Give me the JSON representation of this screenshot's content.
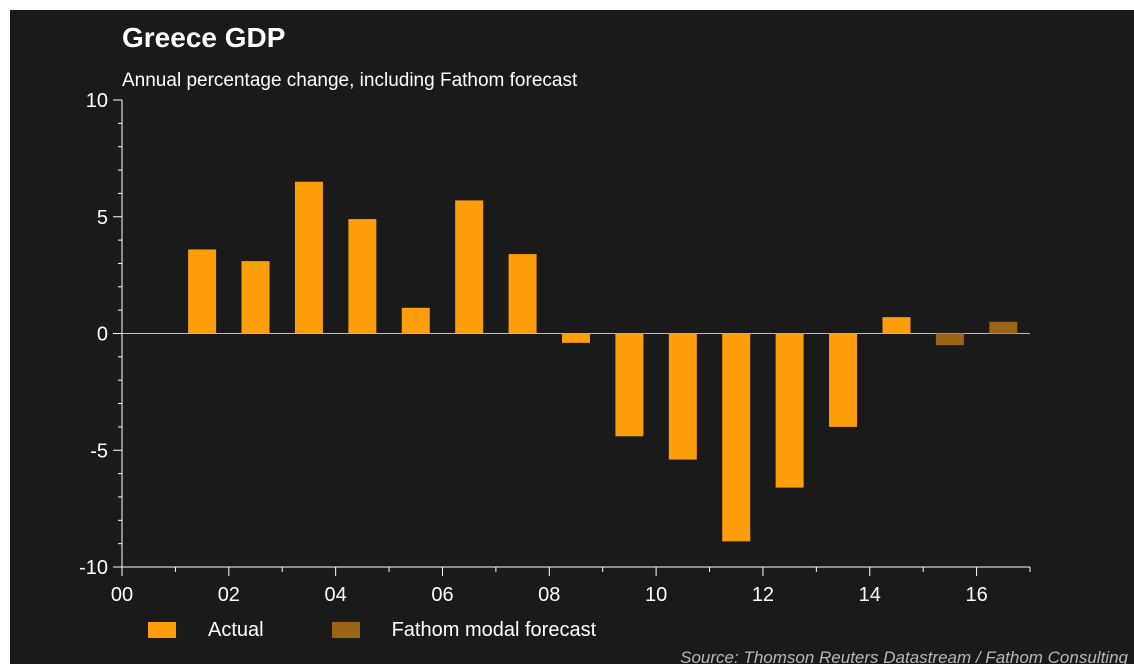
{
  "colors": {
    "background": "#1a1a1a",
    "actual": "#ff9d0a",
    "forecast": "#9b6418",
    "axis": "#ffffff",
    "text": "#ffffff"
  },
  "legend": {
    "actual_label": "Actual",
    "forecast_label": "Fathom modal forecast"
  },
  "source": "Source: Thomson Reuters Datastream / Fathom Consulting",
  "chart_data": {
    "type": "bar",
    "title": "Greece GDP",
    "subtitle": "Annual percentage change, including Fathom forecast",
    "xlabel": "",
    "ylabel": "",
    "ylim": [
      -10,
      10
    ],
    "y_ticks": [
      10,
      5,
      0,
      -5,
      -10
    ],
    "y_tick_labels": [
      "10",
      "5",
      "0",
      "-5",
      "-10"
    ],
    "x_range": [
      2000,
      2017
    ],
    "x_ticks": [
      2000,
      2002,
      2004,
      2006,
      2008,
      2010,
      2012,
      2014,
      2016
    ],
    "x_tick_labels": [
      "00",
      "02",
      "04",
      "06",
      "08",
      "10",
      "12",
      "14",
      "16"
    ],
    "grid": false,
    "legend_position": "bottom-left",
    "series": [
      {
        "name": "Actual",
        "x": [
          2001,
          2002,
          2003,
          2004,
          2005,
          2006,
          2007,
          2008,
          2009,
          2010,
          2011,
          2012,
          2013,
          2014
        ],
        "values": [
          3.6,
          3.1,
          6.5,
          4.9,
          1.1,
          5.7,
          3.4,
          -0.4,
          -4.4,
          -5.4,
          -8.9,
          -6.6,
          -4.0,
          0.7
        ]
      },
      {
        "name": "Fathom modal forecast",
        "x": [
          2015,
          2016
        ],
        "values": [
          -0.5,
          0.5
        ]
      }
    ]
  }
}
